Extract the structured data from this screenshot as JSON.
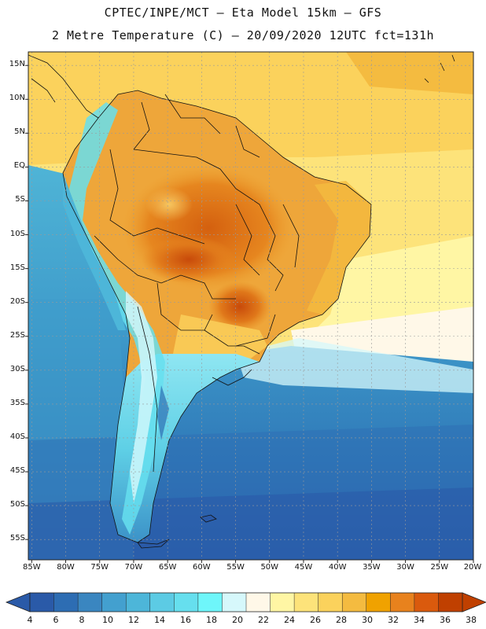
{
  "title": {
    "line1": "CPTEC/INPE/MCT –  Eta Model 15km – GFS",
    "line2": "2 Metre Temperature (C) – 20/09/2020 12UTC fct=131h"
  },
  "map": {
    "lat_labels": [
      "15N",
      "10N",
      "5N",
      "EQ",
      "5S",
      "10S",
      "15S",
      "20S",
      "25S",
      "30S",
      "35S",
      "40S",
      "45S",
      "50S",
      "55S"
    ],
    "lat_values": [
      15,
      10,
      5,
      0,
      -5,
      -10,
      -15,
      -20,
      -25,
      -30,
      -35,
      -40,
      -45,
      -50,
      -55
    ],
    "lon_labels": [
      "85W",
      "80W",
      "75W",
      "70W",
      "65W",
      "60W",
      "55W",
      "50W",
      "45W",
      "40W",
      "35W",
      "30W",
      "25W",
      "20W"
    ],
    "lon_values": [
      -85,
      -80,
      -75,
      -70,
      -65,
      -60,
      -55,
      -50,
      -45,
      -40,
      -35,
      -30,
      -25,
      -20
    ],
    "lat_range": [
      -58,
      17
    ],
    "lon_range": [
      -85.5,
      -20
    ],
    "regions": {
      "ocean_north": "warm yellow 24-28C",
      "continent_center": "orange 30-36C",
      "andes": "cyan to light 8-18C",
      "south_ocean": "blue 4-12C"
    }
  },
  "colorbar": {
    "labels": [
      "4",
      "6",
      "8",
      "10",
      "12",
      "14",
      "16",
      "18",
      "20",
      "22",
      "24",
      "26",
      "28",
      "30",
      "32",
      "34",
      "36",
      "38"
    ],
    "colors": [
      "#2a5aa8",
      "#2d6db3",
      "#3a86c0",
      "#43a0cf",
      "#4db6d9",
      "#5ccbe4",
      "#66dfee",
      "#6ef6fa",
      "#d6f8fb",
      "#fff8e8",
      "#fff6a4",
      "#fde37a",
      "#fbd25c",
      "#f4bb40",
      "#f0a200",
      "#e8821d",
      "#da5a0d",
      "#c04000"
    ],
    "left_arrow_color": "#2a5aa8",
    "right_arrow_color": "#c04000"
  }
}
